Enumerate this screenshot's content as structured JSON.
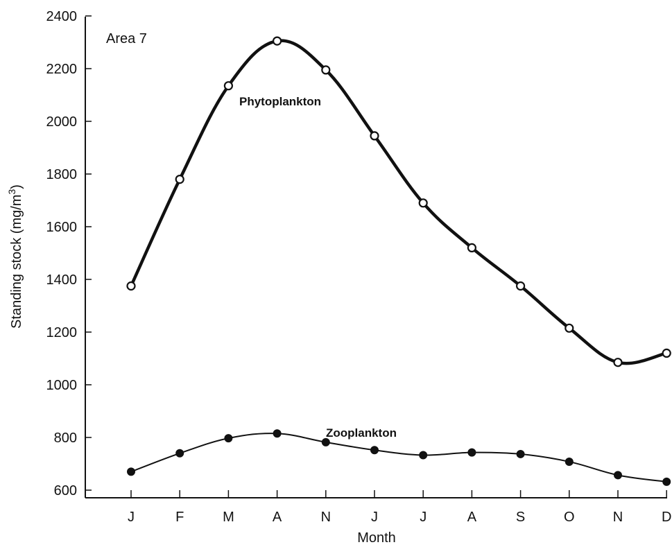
{
  "chart_data": {
    "type": "line",
    "title": "",
    "subtitle": "Area 7",
    "xlabel": "Month",
    "ylabel": "Standing stock (mg/m",
    "ylabel_superscript": "3",
    "ylabel_suffix": ")",
    "categories": [
      "J",
      "F",
      "M",
      "A",
      "N",
      "J",
      "J",
      "A",
      "S",
      "O",
      "N",
      "D"
    ],
    "ylim": [
      400,
      2400
    ],
    "yticks": [
      600,
      800,
      1000,
      1200,
      1400,
      1600,
      1800,
      2000,
      2200,
      2400
    ],
    "grid": false,
    "legend": "none",
    "series": [
      {
        "name": "Phytoplankton",
        "marker": "open-circle",
        "line": "thick",
        "color": "#111111",
        "values": [
          1375,
          1780,
          2135,
          2305,
          2195,
          1945,
          1690,
          1520,
          1375,
          1215,
          1085,
          1120
        ]
      },
      {
        "name": "Zooplankton",
        "marker": "filled-circle",
        "line": "thin",
        "color": "#111111",
        "values": [
          670,
          740,
          797,
          815,
          782,
          752,
          733,
          743,
          737,
          708,
          657,
          632
        ]
      }
    ]
  }
}
